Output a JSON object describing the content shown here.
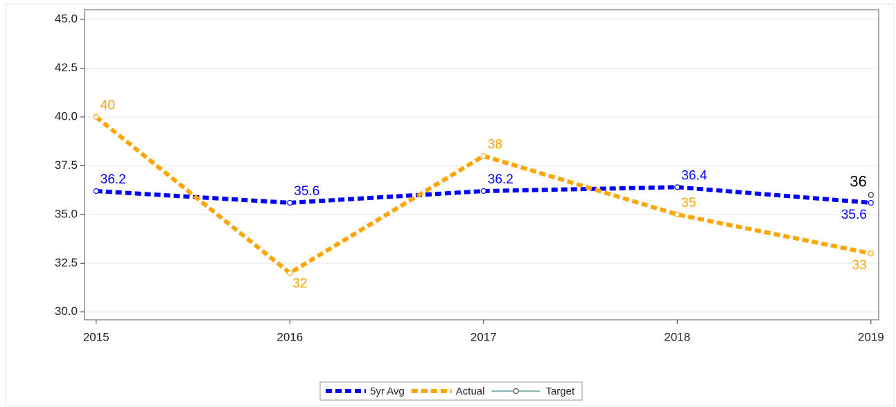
{
  "chart_data": {
    "type": "line",
    "x": [
      2015,
      2016,
      2017,
      2018,
      2019
    ],
    "xlim": [
      2014.94,
      2019.04
    ],
    "xticks": [
      2015,
      2016,
      2017,
      2018,
      2019
    ],
    "ylim": [
      29.6,
      45.5
    ],
    "yticks": [
      {
        "value": 30,
        "label": "30.0"
      },
      {
        "value": 32.5,
        "label": "32.5"
      },
      {
        "value": 35,
        "label": "35.0"
      },
      {
        "value": 37.5,
        "label": "37.5"
      },
      {
        "value": 40,
        "label": "40.0"
      },
      {
        "value": 42.5,
        "label": "42.5"
      },
      {
        "value": 45,
        "label": "45.0"
      }
    ],
    "grid": true,
    "legend": "bottom",
    "series": [
      {
        "name": "5yr Avg",
        "color": "#0000ff",
        "values": [
          36.2,
          35.6,
          36.2,
          36.4,
          35.6
        ]
      },
      {
        "name": "Actual",
        "color": "#ffa500",
        "values": [
          40,
          32,
          38,
          35,
          33
        ]
      },
      {
        "name": "Target",
        "color": "#5f9ea0",
        "values": [
          null,
          null,
          null,
          null,
          36
        ]
      }
    ]
  }
}
